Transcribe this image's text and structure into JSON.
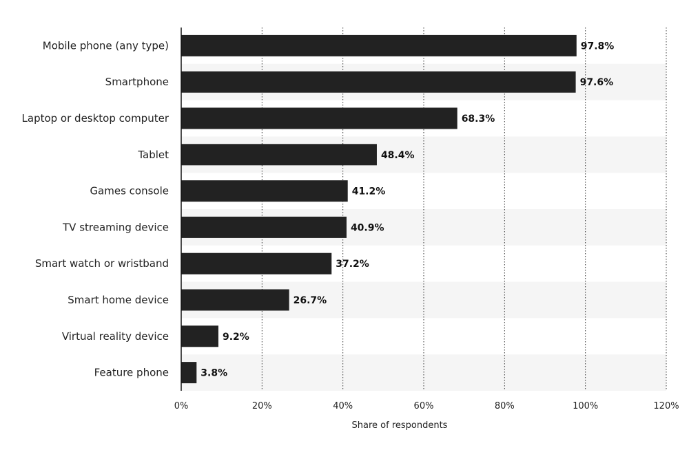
{
  "chart_data": {
    "type": "bar",
    "orientation": "horizontal",
    "categories": [
      "Mobile phone (any type)",
      "Smartphone",
      "Laptop or desktop computer",
      "Tablet",
      "Games console",
      "TV streaming device",
      "Smart watch or wristband",
      "Smart home device",
      "Virtual reality device",
      "Feature phone"
    ],
    "values": [
      97.8,
      97.6,
      68.3,
      48.4,
      41.2,
      40.9,
      37.2,
      26.7,
      9.2,
      3.8
    ],
    "value_labels": [
      "97.8%",
      "97.6%",
      "68.3%",
      "48.4%",
      "41.2%",
      "40.9%",
      "37.2%",
      "26.7%",
      "9.2%",
      "3.8%"
    ],
    "title": "",
    "xlabel": "Share of respondents",
    "ylabel": "",
    "xlim": [
      0,
      120
    ],
    "xticks": [
      0,
      20,
      40,
      60,
      80,
      100,
      120
    ],
    "xtick_labels": [
      "0%",
      "20%",
      "40%",
      "60%",
      "80%",
      "100%",
      "120%"
    ],
    "grid": "vertical dotted",
    "legend": "none",
    "colors": {
      "bar": "#222222",
      "band": "#f5f5f5",
      "grid": "#333333",
      "axis": "#111111"
    }
  }
}
